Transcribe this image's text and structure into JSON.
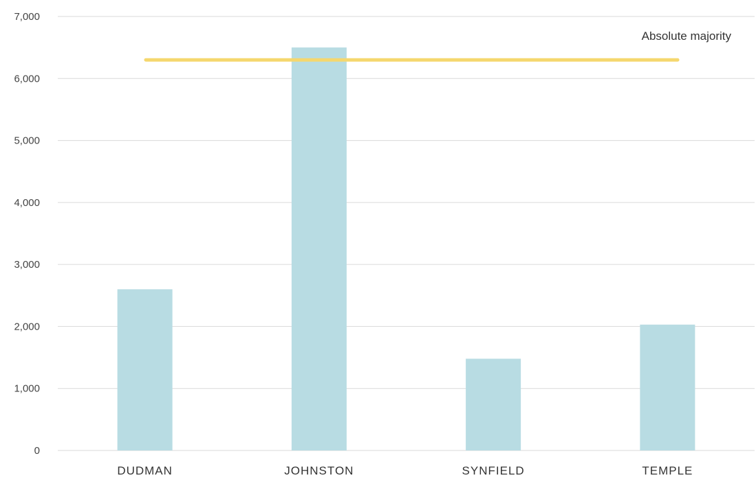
{
  "chart_data": {
    "type": "bar",
    "title": "",
    "xlabel": "",
    "ylabel": "",
    "categories": [
      "DUDMAN",
      "JOHNSTON",
      "SYNFIELD",
      "TEMPLE"
    ],
    "values": [
      2600,
      6500,
      1480,
      2030
    ],
    "ylim": [
      0,
      7000
    ],
    "yticks": [
      "0",
      "1,000",
      "2,000",
      "3,000",
      "4,000",
      "5,000",
      "6,000",
      "7,000"
    ],
    "ytick_values": [
      0,
      1000,
      2000,
      3000,
      4000,
      5000,
      6000,
      7000
    ],
    "grid": true,
    "legend": "none",
    "reference_line": {
      "label": "Absolute majority",
      "value": 6300
    },
    "colors": {
      "bar": "#b8dce3",
      "reference_line": "#f5d76e",
      "grid": "#d9d9d9"
    }
  }
}
